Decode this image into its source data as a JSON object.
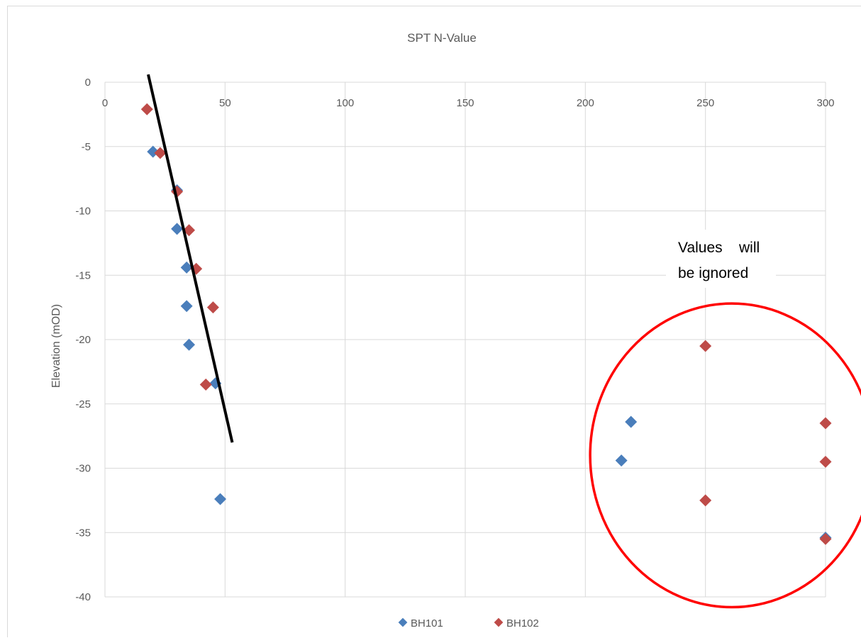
{
  "chart_data": {
    "type": "scatter",
    "title": "SPT N-Value",
    "xlabel": "",
    "ylabel": "Elevation (mOD)",
    "xlim": [
      0,
      300
    ],
    "ylim": [
      -40,
      0
    ],
    "x_ticks": [
      0,
      50,
      100,
      150,
      200,
      250,
      300
    ],
    "y_ticks": [
      0,
      -5,
      -10,
      -15,
      -20,
      -25,
      -30,
      -35,
      -40
    ],
    "x_axis_position": "top",
    "grid": true,
    "legend": "bottom",
    "series": [
      {
        "name": "BH101",
        "color": "#4a7ebb",
        "marker": "diamond",
        "points": [
          [
            20,
            -5.4
          ],
          [
            30,
            -8.4
          ],
          [
            30,
            -11.4
          ],
          [
            34,
            -14.4
          ],
          [
            34,
            -17.4
          ],
          [
            35,
            -20.4
          ],
          [
            46,
            -23.4
          ],
          [
            219,
            -26.4
          ],
          [
            215,
            -29.4
          ],
          [
            48,
            -32.4
          ],
          [
            300,
            -35.4
          ]
        ]
      },
      {
        "name": "BH102",
        "color": "#be4b48",
        "marker": "diamond",
        "points": [
          [
            17.5,
            -2.1
          ],
          [
            23,
            -5.5
          ],
          [
            30,
            -8.5
          ],
          [
            35,
            -11.5
          ],
          [
            38,
            -14.5
          ],
          [
            45,
            -17.5
          ],
          [
            250,
            -20.5
          ],
          [
            42,
            -23.5
          ],
          [
            300,
            -26.5
          ],
          [
            300,
            -29.5
          ],
          [
            250,
            -32.5
          ],
          [
            300,
            -35.5
          ]
        ]
      }
    ],
    "trend_line": {
      "color": "#000000",
      "from": [
        18,
        0.6
      ],
      "to": [
        53,
        -28
      ]
    },
    "annotation": {
      "lines": [
        "Values    will",
        "be ignored"
      ],
      "circle_color": "#ff0000",
      "circle_center": [
        261,
        -29
      ],
      "circle_radius": [
        59,
        11.8
      ]
    }
  }
}
